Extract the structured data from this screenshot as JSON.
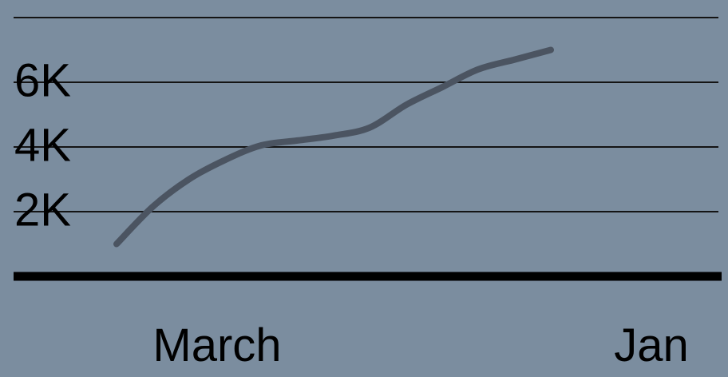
{
  "chart_data": {
    "type": "line",
    "x_tick_labels": [
      "March",
      "Jan"
    ],
    "y_tick_labels": [
      "2K",
      "4K",
      "6K"
    ],
    "y_ticks": [
      2000,
      4000,
      6000
    ],
    "ylim": [
      0,
      8000
    ],
    "grid": true,
    "series": [
      {
        "color": "#4b5461",
        "points": [
          [
            0,
            1000
          ],
          [
            1,
            2150
          ],
          [
            2,
            3000
          ],
          [
            3,
            3600
          ],
          [
            4,
            4050
          ],
          [
            5,
            4200
          ],
          [
            6,
            4350
          ],
          [
            7,
            4600
          ],
          [
            8,
            5300
          ],
          [
            9,
            5850
          ],
          [
            10,
            6400
          ],
          [
            11,
            6700
          ],
          [
            12,
            7000
          ]
        ]
      }
    ]
  }
}
